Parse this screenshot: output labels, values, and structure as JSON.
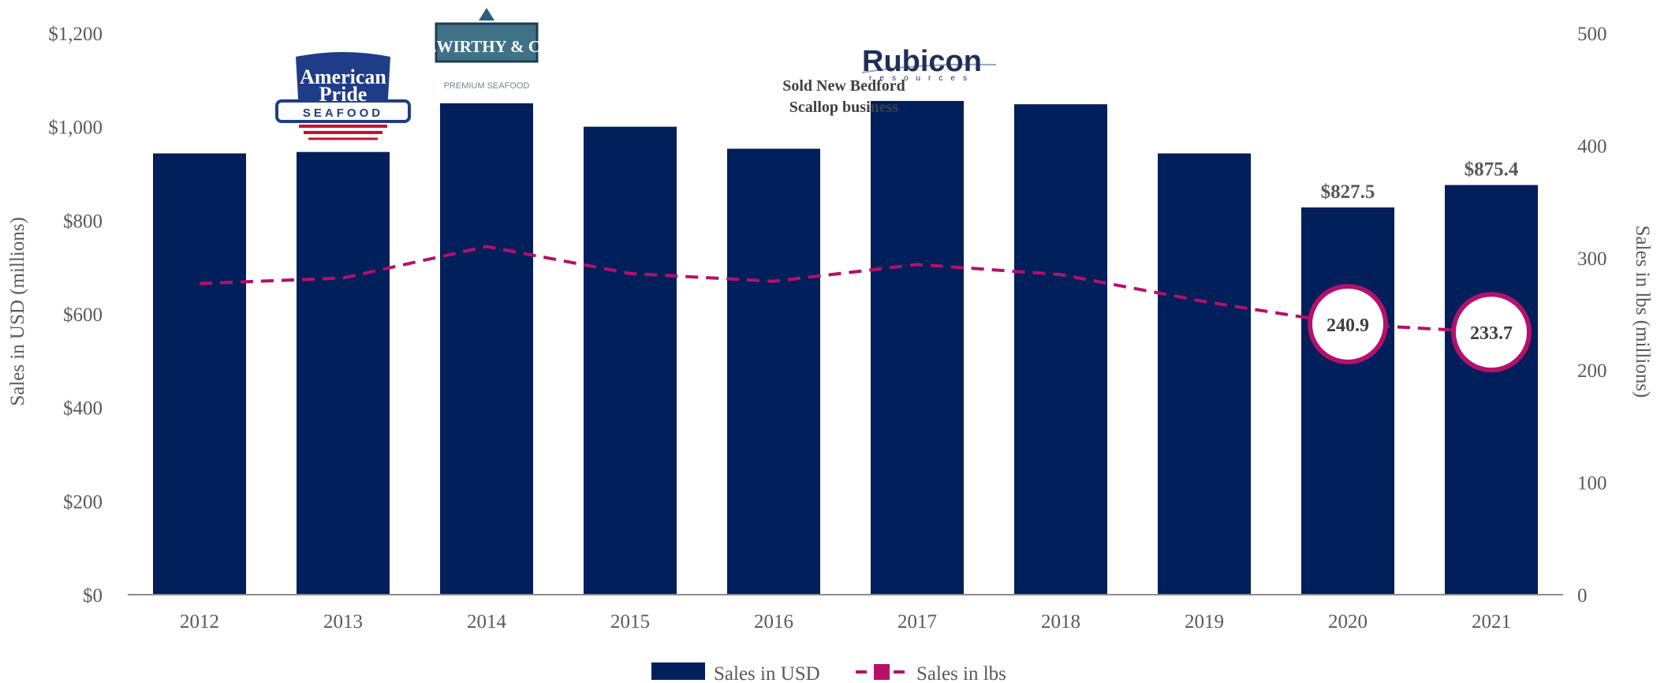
{
  "chart_data": {
    "type": "bar",
    "categories": [
      "2012",
      "2013",
      "2014",
      "2015",
      "2016",
      "2017",
      "2018",
      "2019",
      "2020",
      "2021"
    ],
    "series": [
      {
        "name": "Sales in USD",
        "type": "bar",
        "axis": "left",
        "values": [
          943,
          946,
          1050,
          1000,
          953,
          1055,
          1048,
          943,
          827.5,
          875.4
        ]
      },
      {
        "name": "Sales in lbs",
        "type": "line",
        "axis": "right",
        "values": [
          277,
          282,
          310,
          286,
          279,
          294,
          285,
          261,
          240.9,
          233.7
        ]
      }
    ],
    "y_left": {
      "label": "Sales in USD (millions)",
      "lim": [
        0,
        1200
      ],
      "ticks": [
        0,
        200,
        400,
        600,
        800,
        1000,
        1200
      ],
      "tick_labels": [
        "$0",
        "$200",
        "$400",
        "$600",
        "$800",
        "$1,000",
        "$1,200"
      ]
    },
    "y_right": {
      "label": "Sales in lbs (millions)",
      "lim": [
        0,
        500
      ],
      "ticks": [
        0,
        100,
        200,
        300,
        400,
        500
      ],
      "tick_labels": [
        "0",
        "100",
        "200",
        "300",
        "400",
        "500"
      ]
    },
    "bar_labels": [
      {
        "index": 8,
        "text": "$827.5"
      },
      {
        "index": 9,
        "text": "$875.4"
      }
    ],
    "line_labels": [
      {
        "index": 8,
        "text": "240.9"
      },
      {
        "index": 9,
        "text": "233.7"
      }
    ],
    "annotations": [
      {
        "index": 4.5,
        "lines": [
          "Sold New Bedford",
          "Scallop business"
        ]
      }
    ],
    "logos": [
      {
        "index": 1,
        "name": "american-pride-seafood-logo",
        "lines": [
          "American",
          "Pride",
          "SEAFOOD"
        ]
      },
      {
        "index": 2,
        "name": "c-wirthy-co-logo",
        "lines": [
          "C.WIRTHY & Co.",
          "PREMIUM SEAFOOD"
        ]
      },
      {
        "index": 5,
        "name": "rubicon-resources-logo",
        "lines": [
          "Rubicon",
          "resources"
        ]
      }
    ],
    "legend": {
      "position": "bottom-center"
    },
    "grid": false,
    "colors": {
      "bar": "#001f5b",
      "line": "#b5106a",
      "text": "#595959"
    }
  }
}
